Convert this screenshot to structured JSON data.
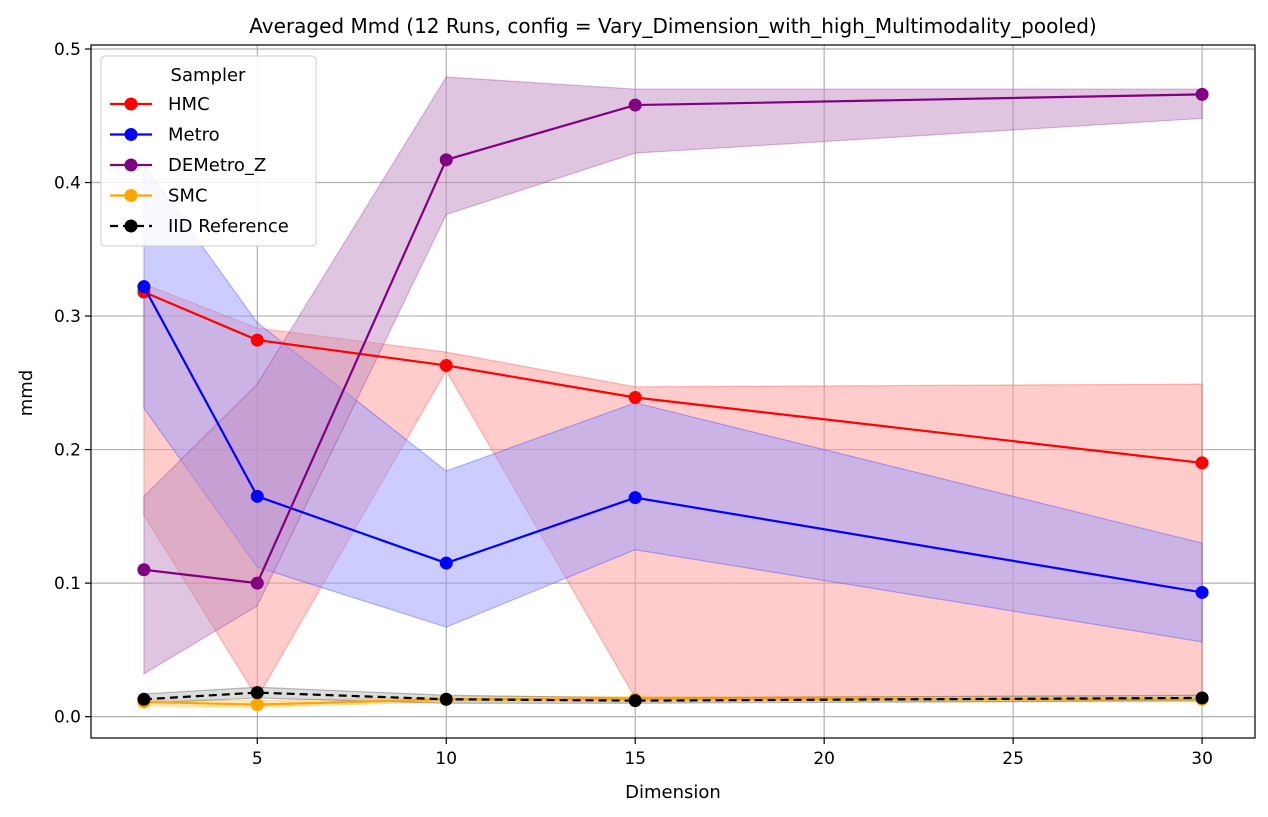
{
  "chart_data": {
    "type": "line",
    "title": "Averaged Mmd (12 Runs, config = Vary_Dimension_with_high_Multimodality_pooled)",
    "xlabel": "Dimension",
    "ylabel": "mmd",
    "x": [
      2,
      5,
      10,
      15,
      30
    ],
    "xlim": [
      0.6,
      31.4
    ],
    "ylim": [
      -0.016,
      0.503
    ],
    "xticks": [
      5,
      10,
      15,
      20,
      25,
      30
    ],
    "yticks": [
      0.0,
      0.1,
      0.2,
      0.3,
      0.4,
      0.5
    ],
    "grid": true,
    "legend": {
      "title": "Sampler",
      "placement": "upper-left"
    },
    "series": [
      {
        "name": "HMC",
        "color": "#ff0000",
        "fill": "#ff9999",
        "dash": false,
        "values": [
          0.318,
          0.282,
          0.263,
          0.239,
          0.19
        ],
        "upper": [
          0.324,
          0.291,
          0.273,
          0.247,
          0.249
        ],
        "lower": [
          0.151,
          0.014,
          0.259,
          0.014,
          0.013
        ]
      },
      {
        "name": "Metro",
        "color": "#0000ff",
        "fill": "#9999ff",
        "dash": false,
        "values": [
          0.322,
          0.165,
          0.115,
          0.164,
          0.093
        ],
        "upper": [
          0.413,
          0.295,
          0.184,
          0.235,
          0.13
        ],
        "lower": [
          0.231,
          0.112,
          0.067,
          0.125,
          0.056
        ]
      },
      {
        "name": "DEMetro_Z",
        "color": "#800080",
        "fill": "#c08cc0",
        "dash": false,
        "values": [
          0.11,
          0.1,
          0.417,
          0.458,
          0.466
        ],
        "upper": [
          0.165,
          0.249,
          0.479,
          0.47,
          0.47
        ],
        "lower": [
          0.032,
          0.083,
          0.376,
          0.422,
          0.448
        ]
      },
      {
        "name": "SMC",
        "color": "#ffa500",
        "fill": "#ffd080",
        "dash": false,
        "values": [
          0.011,
          0.009,
          0.013,
          0.013,
          0.013
        ],
        "upper": [
          0.013,
          0.012,
          0.015,
          0.015,
          0.015
        ],
        "lower": [
          0.008,
          0.007,
          0.011,
          0.011,
          0.011
        ]
      },
      {
        "name": "IID Reference",
        "color": "#000000",
        "fill": "#bbbbbb",
        "dash": true,
        "values": [
          0.013,
          0.018,
          0.013,
          0.012,
          0.014
        ],
        "upper": [
          0.017,
          0.022,
          0.016,
          0.014,
          0.016
        ],
        "lower": [
          0.01,
          0.014,
          0.01,
          0.01,
          0.012
        ]
      }
    ]
  }
}
